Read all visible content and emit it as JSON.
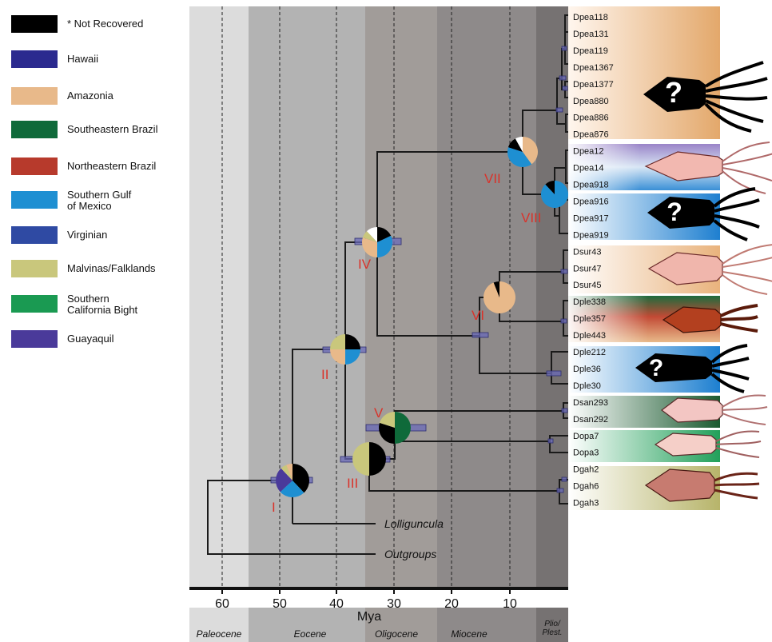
{
  "legend": [
    {
      "label": "* Not Recovered",
      "color": "#000000"
    },
    {
      "label": "Hawaii",
      "color": "#2b2a8f"
    },
    {
      "label": "Amazonia",
      "color": "#e8b98a"
    },
    {
      "label": "Southeastern Brazil",
      "color": "#0f6a3a"
    },
    {
      "label": "Northeastern Brazil",
      "color": "#b73a2c"
    },
    {
      "label": "Southern Gulf\nof Mexico",
      "color": "#1e8fd2"
    },
    {
      "label": "Virginian",
      "color": "#2f4aa3"
    },
    {
      "label": "Malvinas/Falklands",
      "color": "#c9c77c"
    },
    {
      "label": "Southern\nCalifornia Bight",
      "color": "#1a9a52"
    },
    {
      "label": "Guayaquil",
      "color": "#4a3a9a"
    }
  ],
  "axis": {
    "label": "Mya",
    "ticks": [
      "60",
      "50",
      "40",
      "30",
      "20",
      "10"
    ]
  },
  "epochs": [
    "Paleocene",
    "Eocene",
    "Oligocene",
    "Miocene",
    "Plio/\nPlest."
  ],
  "nodes": [
    {
      "label": "I",
      "pie": [
        {
          "color": "#000000",
          "frac": 0.38
        },
        {
          "color": "#1e8fd2",
          "frac": 0.25
        },
        {
          "color": "#4a3a9a",
          "frac": 0.25
        },
        {
          "color": "#c9c77c",
          "frac": 0.06
        },
        {
          "color": "#e8b98a",
          "frac": 0.06
        }
      ]
    },
    {
      "label": "II",
      "pie": [
        {
          "color": "#000000",
          "frac": 0.25
        },
        {
          "color": "#1e8fd2",
          "frac": 0.25
        },
        {
          "color": "#e8b98a",
          "frac": 0.25
        },
        {
          "color": "#c9c77c",
          "frac": 0.25
        }
      ]
    },
    {
      "label": "III",
      "pie": [
        {
          "color": "#000000",
          "frac": 0.5
        },
        {
          "color": "#c9c77c",
          "frac": 0.5
        }
      ]
    },
    {
      "label": "IV",
      "pie": [
        {
          "color": "#000000",
          "frac": 0.18
        },
        {
          "color": "#1e8fd2",
          "frac": 0.32
        },
        {
          "color": "#e8b98a",
          "frac": 0.3
        },
        {
          "color": "#c9c77c",
          "frac": 0.08
        },
        {
          "color": "#ffffff",
          "frac": 0.12
        }
      ]
    },
    {
      "label": "V",
      "pie": [
        {
          "color": "#0f6a3a",
          "frac": 0.5
        },
        {
          "color": "#000000",
          "frac": 0.3
        },
        {
          "color": "#c9c77c",
          "frac": 0.2
        }
      ]
    },
    {
      "label": "VI",
      "pie": [
        {
          "color": "#e8b98a",
          "frac": 0.94
        },
        {
          "color": "#000000",
          "frac": 0.06
        }
      ]
    },
    {
      "label": "VII",
      "pie": [
        {
          "color": "#e8b98a",
          "frac": 0.4
        },
        {
          "color": "#1e8fd2",
          "frac": 0.4
        },
        {
          "color": "#000000",
          "frac": 0.12
        },
        {
          "color": "#ffffff",
          "frac": 0.08
        }
      ]
    },
    {
      "label": "VIII",
      "pie": [
        {
          "color": "#1e8fd2",
          "frac": 0.88
        },
        {
          "color": "#000000",
          "frac": 0.12
        }
      ]
    }
  ],
  "outgroup_labels": [
    "Lolliguncula",
    "Outgroups"
  ],
  "question_mark": "?",
  "taxa": [
    "Dpea118",
    "Dpea131",
    "Dpea119",
    "Dpea1367",
    "Dpea1377",
    "Dpea880",
    "Dpea886",
    "Dpea876",
    "Dpea12",
    "Dpea14",
    "Dpea918",
    "Dpea916",
    "Dpea917",
    "Dpea919",
    "Dsur43",
    "Dsur47",
    "Dsur45",
    "Dple338",
    "Dple357",
    "Dple443",
    "Dple212",
    "Dple36",
    "Dple30",
    "Dsan293",
    "Dsan292",
    "Dopa7",
    "Dopa3",
    "Dgah2",
    "Dgah6",
    "Dgah3"
  ],
  "colors": {
    "node_label": "#d9322a",
    "conf_bar": "#6a6ab8",
    "branch": "#1a1a1a"
  }
}
